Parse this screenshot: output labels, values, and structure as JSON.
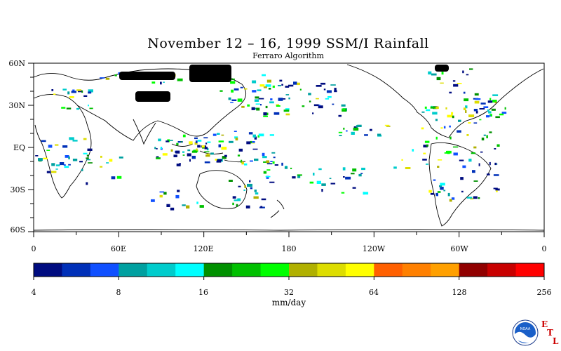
{
  "title": "November 12 – 16, 1999 SSM/I Rainfall",
  "subtitle": "Ferraro Algorithm",
  "lat_labels": [
    "60N",
    "30N",
    "EQ",
    "30S",
    "60S"
  ],
  "lon_labels": [
    "0",
    "60E",
    "120E",
    "180",
    "120W",
    "60W",
    "0"
  ],
  "colorbar": {
    "colors": [
      "#000c80",
      "#0030b8",
      "#1050ff",
      "#00a0a0",
      "#00cccc",
      "#00ffff",
      "#009000",
      "#00c000",
      "#00ff00",
      "#b0b000",
      "#dddd00",
      "#ffff00",
      "#ff6000",
      "#ff8000",
      "#ffa000",
      "#900000",
      "#c80000",
      "#ff0000"
    ],
    "tick_labels": [
      "4",
      "8",
      "16",
      "32",
      "64",
      "128",
      "256"
    ],
    "units": "mm/day"
  },
  "logo": {
    "name": "NOAA",
    "letters": [
      "E",
      "T",
      "L"
    ]
  }
}
